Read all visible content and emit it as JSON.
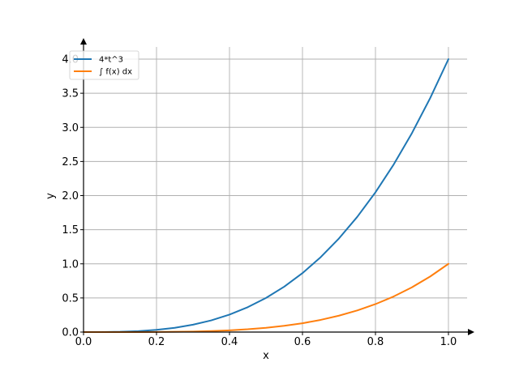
{
  "chart_data": {
    "type": "line",
    "title": "",
    "xlabel": "x",
    "ylabel": "y",
    "xlim": [
      0,
      1
    ],
    "ylim": [
      0,
      4
    ],
    "x_ticks": [
      0.0,
      0.2,
      0.4,
      0.6,
      0.8,
      1.0
    ],
    "x_tick_labels": [
      "0.0",
      "0.2",
      "0.4",
      "0.6",
      "0.8",
      "1.0"
    ],
    "y_ticks": [
      0.0,
      0.5,
      1.0,
      1.5,
      2.0,
      2.5,
      3.0,
      3.5,
      4.0
    ],
    "y_tick_labels": [
      "0.0",
      "0.5",
      "1.0",
      "1.5",
      "2.0",
      "2.5",
      "3.0",
      "3.5",
      "4.0"
    ],
    "grid": true,
    "legend_position": "top-left",
    "series": [
      {
        "name": "4*t^3",
        "color": "#1f77b4",
        "x": [
          0.0,
          0.05,
          0.1,
          0.15,
          0.2,
          0.25,
          0.3,
          0.35,
          0.4,
          0.45,
          0.5,
          0.55,
          0.6,
          0.65,
          0.7,
          0.75,
          0.8,
          0.85,
          0.9,
          0.95,
          1.0
        ],
        "y": [
          0.0,
          0.0005,
          0.004,
          0.0135,
          0.032,
          0.0625,
          0.108,
          0.1715,
          0.256,
          0.3645,
          0.5,
          0.6655,
          0.864,
          1.0985,
          1.372,
          1.6875,
          2.048,
          2.4565,
          2.916,
          3.4295,
          4.0
        ]
      },
      {
        "name": "∫ f(x) dx",
        "color": "#ff7f0e",
        "x": [
          0.0,
          0.05,
          0.1,
          0.15,
          0.2,
          0.25,
          0.3,
          0.35,
          0.4,
          0.45,
          0.5,
          0.55,
          0.6,
          0.65,
          0.7,
          0.75,
          0.8,
          0.85,
          0.9,
          0.95,
          1.0
        ],
        "y": [
          0.0,
          0.0,
          0.0001,
          0.0005,
          0.0016,
          0.0039,
          0.0081,
          0.015,
          0.0256,
          0.041,
          0.0625,
          0.0915,
          0.1296,
          0.1785,
          0.2401,
          0.3164,
          0.4096,
          0.522,
          0.6561,
          0.8145,
          1.0
        ]
      }
    ]
  }
}
